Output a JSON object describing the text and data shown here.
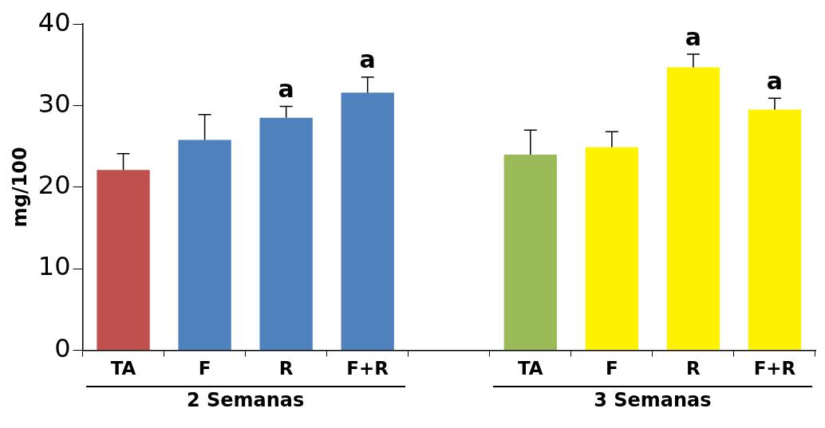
{
  "chart_data": {
    "type": "bar",
    "ylabel": "mg/100",
    "categories": [
      "TA",
      "F",
      "R",
      "F+R",
      null,
      "TA",
      "F",
      "R",
      "F+R"
    ],
    "values": [
      22.1,
      25.8,
      28.5,
      31.6,
      null,
      24.0,
      24.9,
      34.7,
      29.5
    ],
    "errors": [
      2.0,
      3.1,
      1.4,
      1.9,
      null,
      3.0,
      1.9,
      1.6,
      1.4
    ],
    "colors": [
      "#c0504d",
      "#4f81bd",
      "#4f81bd",
      "#4f81bd",
      "#ffffff",
      "#9bbb59",
      "#fff200",
      "#fff200",
      "#fff200"
    ],
    "value_labels": [
      null,
      null,
      "a",
      "a",
      null,
      null,
      null,
      "a",
      "a"
    ],
    "annotations": [
      "2 Semanas",
      "3 Semanas"
    ],
    "ylim": [
      0,
      40
    ],
    "yticks": [
      0,
      10,
      20,
      30,
      40
    ],
    "grid": false,
    "legend": false
  }
}
